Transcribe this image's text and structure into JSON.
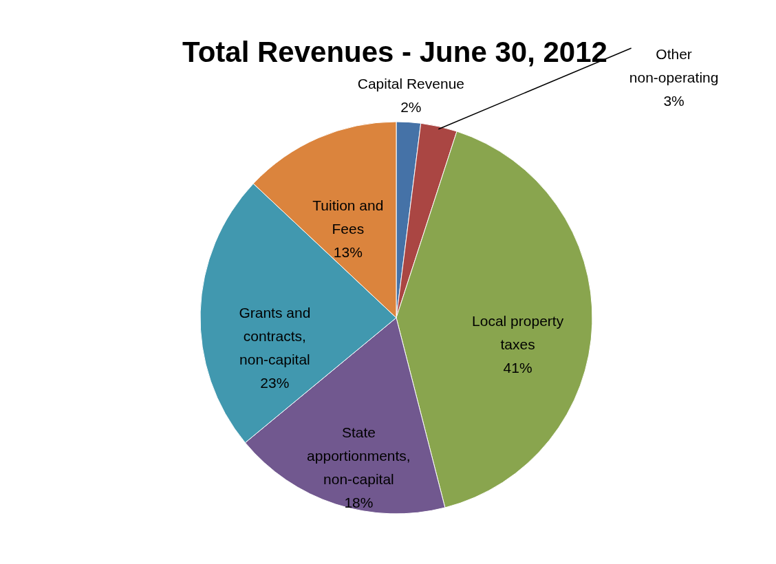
{
  "chart_data": {
    "type": "pie",
    "title": "Total Revenues - June 30, 2012",
    "categories": [
      "Capital Revenue",
      "Other non-operating",
      "Local property taxes",
      "State apportionments, non-capital",
      "Grants and contracts, non-capital",
      "Tuition and Fees"
    ],
    "values": [
      2,
      3,
      41,
      18,
      23,
      13
    ],
    "value_labels": [
      "2%",
      "3%",
      "41%",
      "18%",
      "23%",
      "13%"
    ],
    "colors": [
      "#4572a7",
      "#aa4643",
      "#89a54e",
      "#71588f",
      "#4198af",
      "#db843d"
    ]
  }
}
